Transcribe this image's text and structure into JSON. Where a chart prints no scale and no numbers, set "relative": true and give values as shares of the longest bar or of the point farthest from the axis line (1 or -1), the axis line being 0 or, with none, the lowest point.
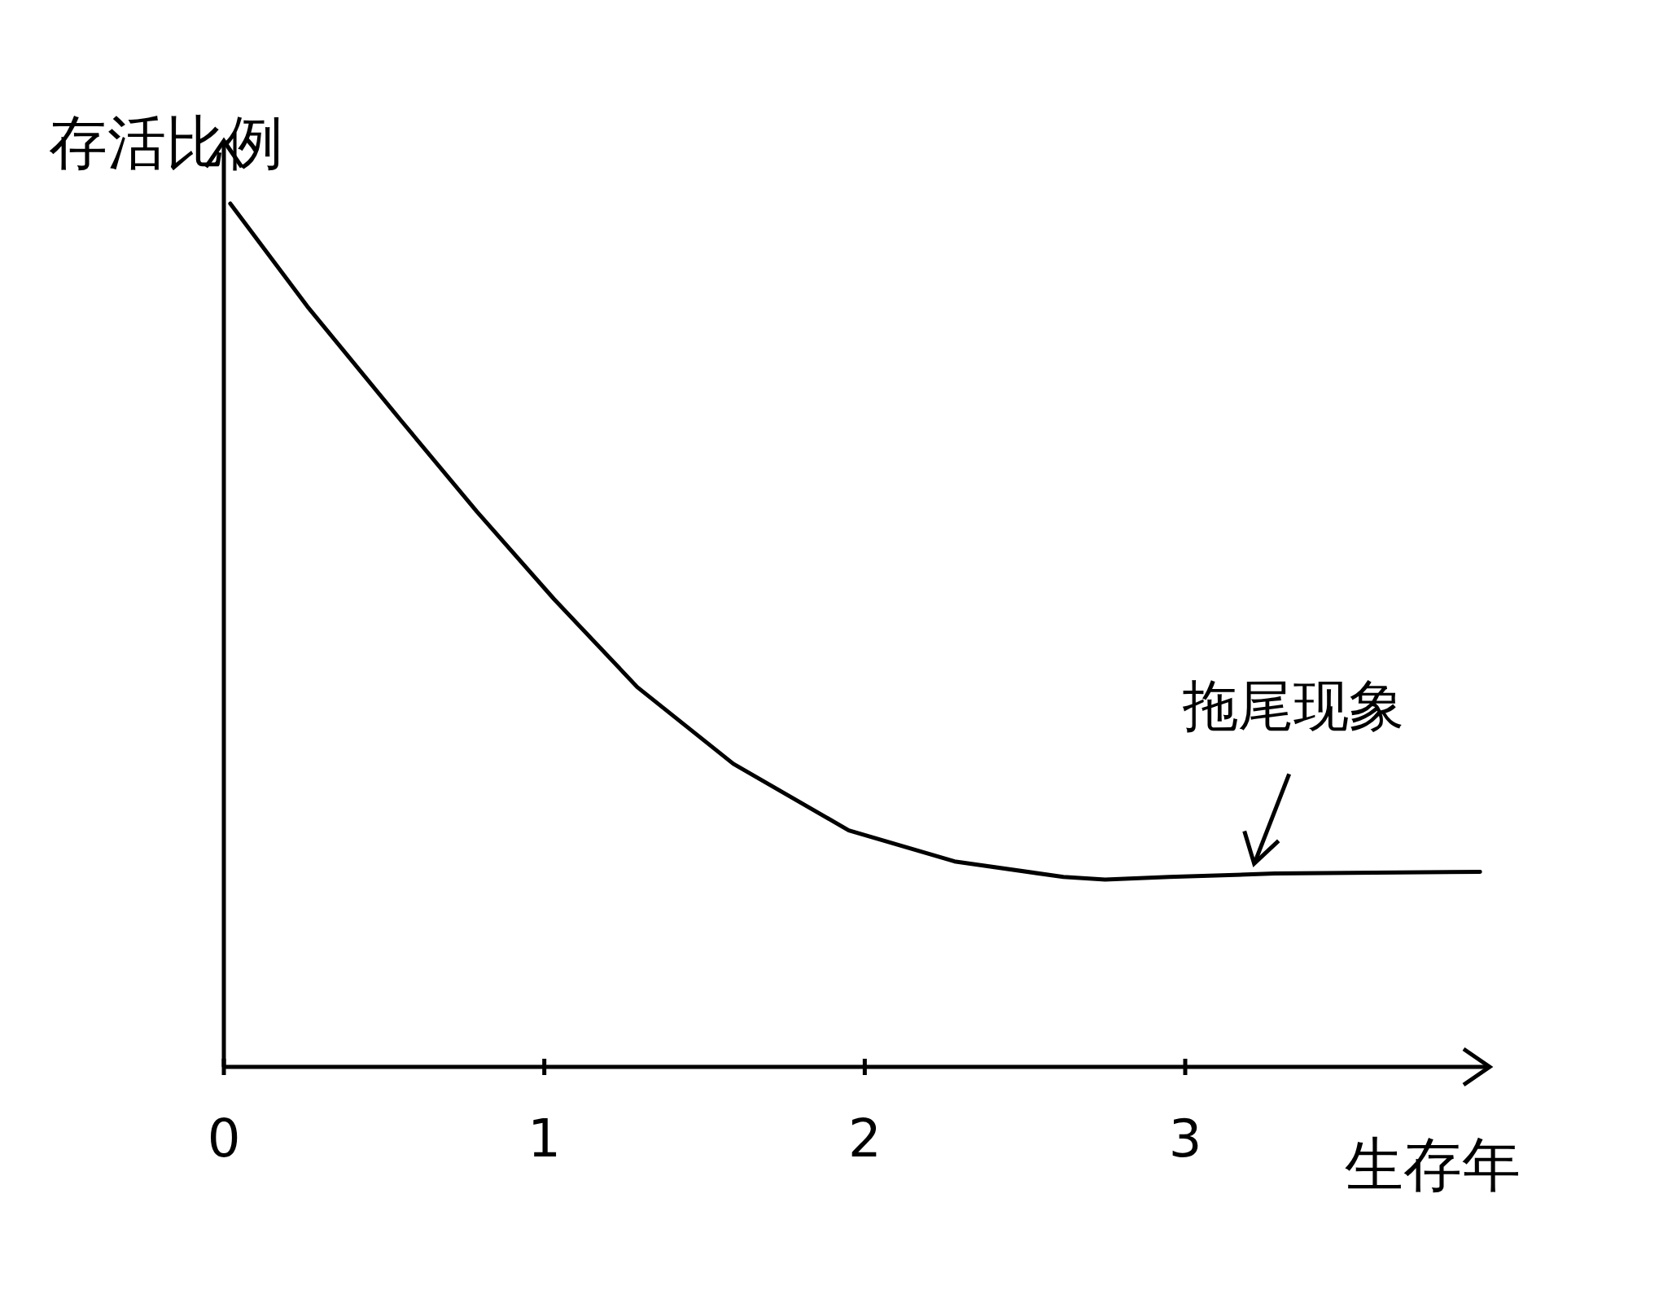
{
  "chart_data": {
    "type": "line",
    "relative": true,
    "xlabel": "生存年",
    "ylabel": "存活比例",
    "color": "#000000",
    "tick_labels": "x",
    "x": [
      0.02,
      0.26,
      0.55,
      0.79,
      1.03,
      1.29,
      1.59,
      1.95,
      2.28,
      2.62,
      2.75,
      2.95,
      3.28,
      3.92
    ],
    "values": [
      1,
      0.881,
      0.75,
      0.643,
      0.542,
      0.44,
      0.351,
      0.274,
      0.238,
      0.22,
      0.217,
      0.22,
      0.224,
      0.226
    ],
    "xlim": [
      0,
      3.95
    ],
    "xticks": [
      0,
      1,
      2,
      3
    ],
    "annotations": [
      {
        "text": "拖尾现象",
        "x": 3.21,
        "y": 0.226
      }
    ]
  }
}
